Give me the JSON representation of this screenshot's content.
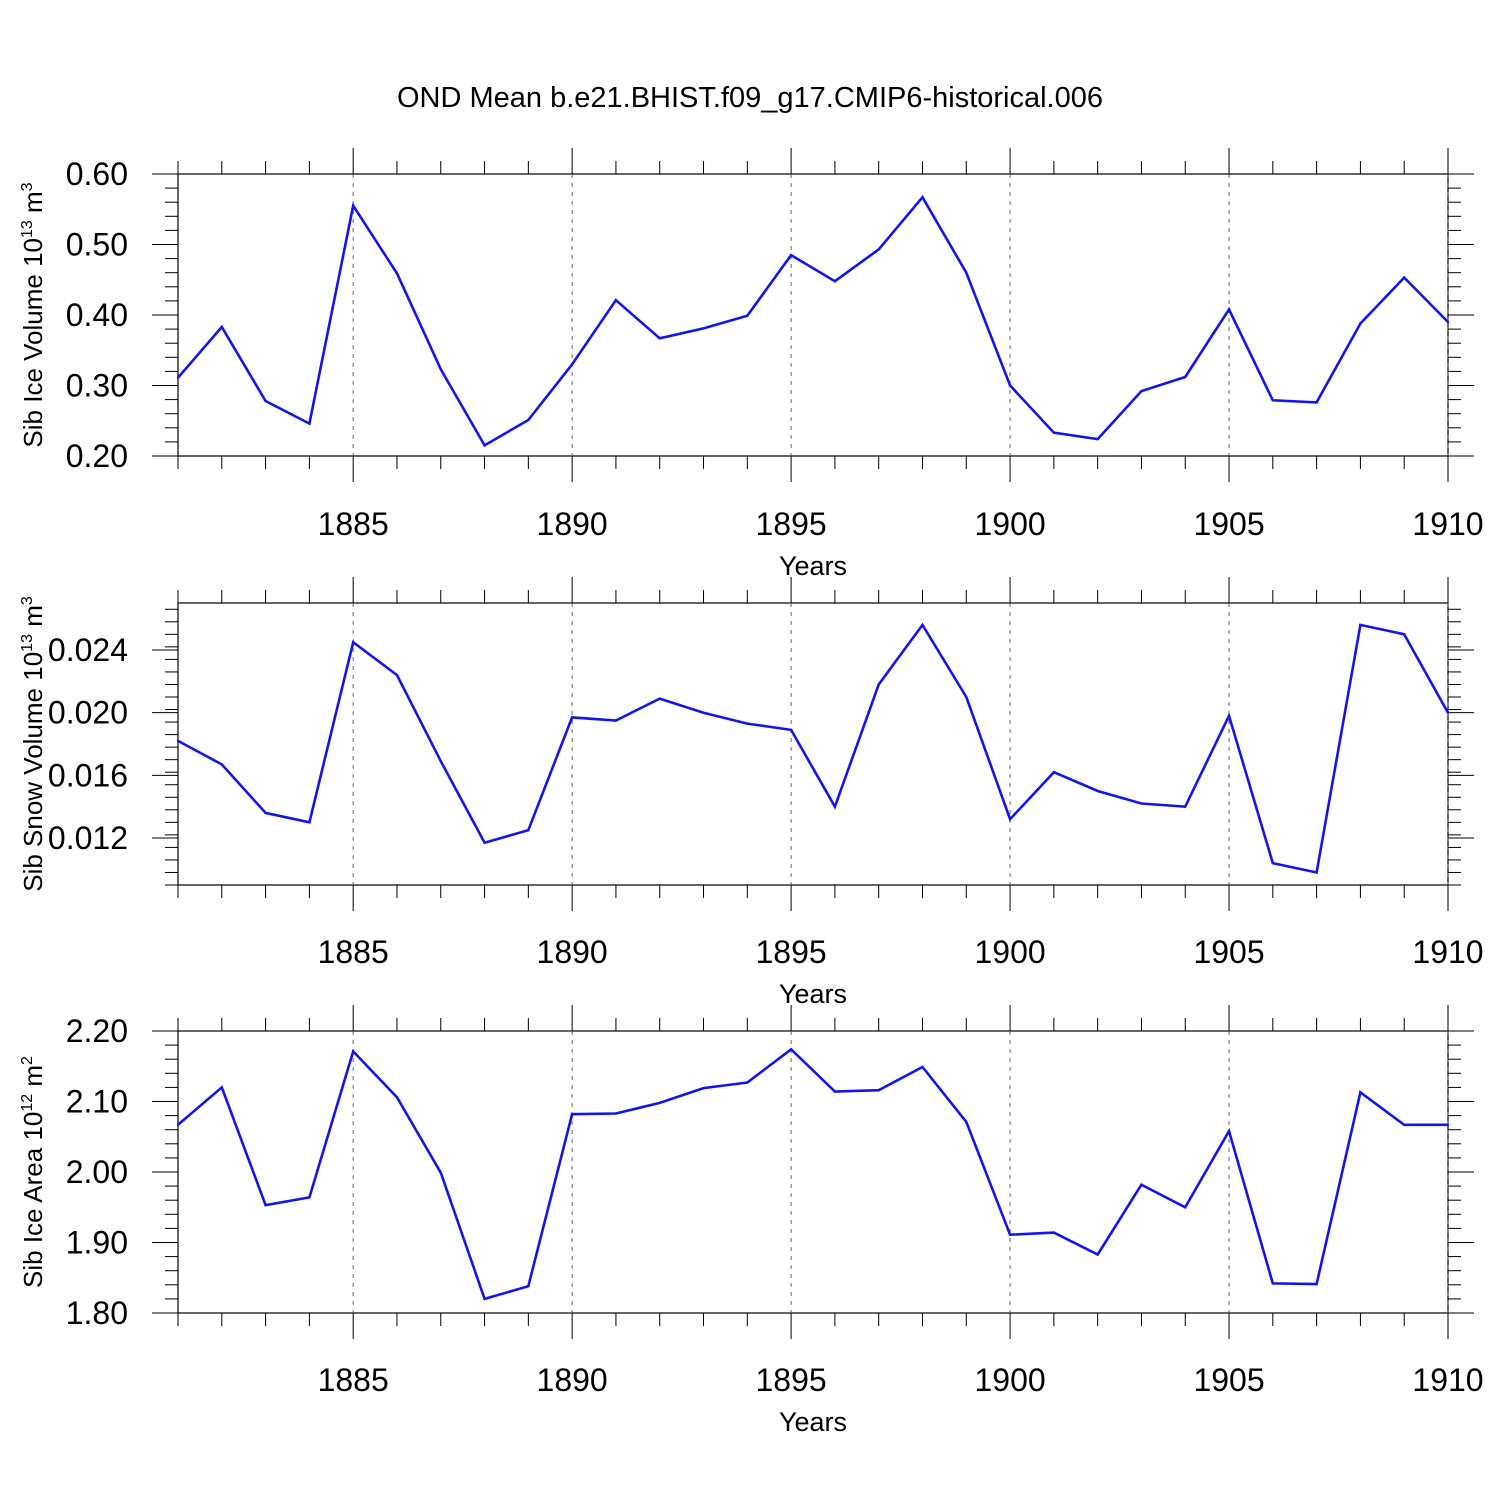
{
  "title": "OND Mean b.e21.BHIST.f09_g17.CMIP6-historical.006",
  "chart_data": [
    {
      "type": "line",
      "ylabel": "Sib Ice Volume 10",
      "ylabel_exp": "13",
      "ylabel_unit": "m",
      "ylabel_unit_exp": "3",
      "xlabel": "Years",
      "xlim": [
        1881,
        1910
      ],
      "ylim": [
        0.2,
        0.6
      ],
      "yticks": [
        0.2,
        0.3,
        0.4,
        0.5,
        0.6
      ],
      "ytick_labels": [
        "0.20",
        "0.30",
        "0.40",
        "0.50",
        "0.60"
      ],
      "xticks": [
        1885,
        1890,
        1895,
        1900,
        1905,
        1910
      ],
      "xtick_labels": [
        "1885",
        "1890",
        "1895",
        "1900",
        "1905",
        "1910"
      ],
      "years": [
        1881,
        1882,
        1883,
        1884,
        1885,
        1886,
        1887,
        1888,
        1889,
        1890,
        1891,
        1892,
        1893,
        1894,
        1895,
        1896,
        1897,
        1898,
        1899,
        1900,
        1901,
        1902,
        1903,
        1904,
        1905,
        1906,
        1907,
        1908,
        1909,
        1910
      ],
      "values": [
        0.311,
        0.383,
        0.278,
        0.246,
        0.555,
        0.459,
        0.323,
        0.215,
        0.251,
        0.33,
        0.421,
        0.367,
        0.381,
        0.399,
        0.485,
        0.448,
        0.493,
        0.567,
        0.46,
        0.3,
        0.233,
        0.224,
        0.292,
        0.312,
        0.408,
        0.279,
        0.276,
        0.388,
        0.453,
        0.39
      ],
      "line_color": "#1414f0"
    },
    {
      "type": "line",
      "ylabel": "Sib Snow Volume 10",
      "ylabel_exp": "13",
      "ylabel_unit": "m",
      "ylabel_unit_exp": "3",
      "xlabel": "Years",
      "xlim": [
        1881,
        1910
      ],
      "ylim": [
        0.009,
        0.027
      ],
      "yticks": [
        0.012,
        0.016,
        0.02,
        0.024
      ],
      "ytick_labels": [
        "0.012",
        "0.016",
        "0.020",
        "0.024"
      ],
      "xticks": [
        1885,
        1890,
        1895,
        1900,
        1905,
        1910
      ],
      "xtick_labels": [
        "1885",
        "1890",
        "1895",
        "1900",
        "1905",
        "1910"
      ],
      "years": [
        1881,
        1882,
        1883,
        1884,
        1885,
        1886,
        1887,
        1888,
        1889,
        1890,
        1891,
        1892,
        1893,
        1894,
        1895,
        1896,
        1897,
        1898,
        1899,
        1900,
        1901,
        1902,
        1903,
        1904,
        1905,
        1906,
        1907,
        1908,
        1909,
        1910
      ],
      "values": [
        0.0182,
        0.0167,
        0.0136,
        0.013,
        0.0245,
        0.0224,
        0.0169,
        0.0117,
        0.0125,
        0.0197,
        0.0195,
        0.0209,
        0.02,
        0.0193,
        0.0189,
        0.014,
        0.0218,
        0.0256,
        0.021,
        0.0132,
        0.0162,
        0.015,
        0.0142,
        0.014,
        0.0198,
        0.0104,
        0.0098,
        0.0256,
        0.025,
        0.02
      ],
      "line_color": "#1414f0"
    },
    {
      "type": "line",
      "ylabel": "Sib Ice Area 10",
      "ylabel_exp": "12",
      "ylabel_unit": "m",
      "ylabel_unit_exp": "2",
      "xlabel": "Years",
      "xlim": [
        1881,
        1910
      ],
      "ylim": [
        1.8,
        2.2
      ],
      "yticks": [
        1.8,
        1.9,
        2.0,
        2.1,
        2.2
      ],
      "ytick_labels": [
        "1.80",
        "1.90",
        "2.00",
        "2.10",
        "2.20"
      ],
      "xticks": [
        1885,
        1890,
        1895,
        1900,
        1905,
        1910
      ],
      "xtick_labels": [
        "1885",
        "1890",
        "1895",
        "1900",
        "1905",
        "1910"
      ],
      "years": [
        1881,
        1882,
        1883,
        1884,
        1885,
        1886,
        1887,
        1888,
        1889,
        1890,
        1891,
        1892,
        1893,
        1894,
        1895,
        1896,
        1897,
        1898,
        1899,
        1900,
        1901,
        1902,
        1903,
        1904,
        1905,
        1906,
        1907,
        1908,
        1909,
        1910
      ],
      "values": [
        2.067,
        2.12,
        1.953,
        1.964,
        2.171,
        2.106,
        1.999,
        1.82,
        1.838,
        2.082,
        2.083,
        2.098,
        2.119,
        2.127,
        2.174,
        2.114,
        2.116,
        2.149,
        2.071,
        1.911,
        1.914,
        1.883,
        1.982,
        1.95,
        2.058,
        1.842,
        1.841,
        2.113,
        2.067,
        2.067
      ],
      "line_color": "#1414f0"
    }
  ]
}
